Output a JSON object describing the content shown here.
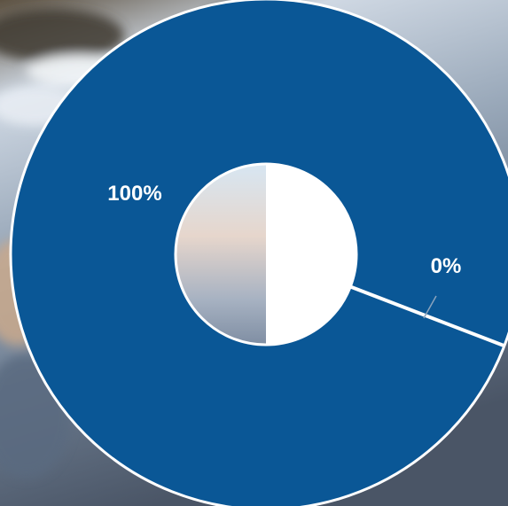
{
  "chart_data": {
    "type": "pie",
    "style": "donut",
    "slices": [
      {
        "value": 100,
        "label": "100%",
        "color": "#0a5796"
      },
      {
        "value": 0,
        "label": "0%",
        "color": "#ffffff"
      }
    ]
  },
  "colors": {
    "primary_slice": "#0a5796",
    "slice_border": "#ffffff",
    "leader_line": "#8aa3bd"
  },
  "background": {
    "description_icon": "river-rapids-photo"
  }
}
